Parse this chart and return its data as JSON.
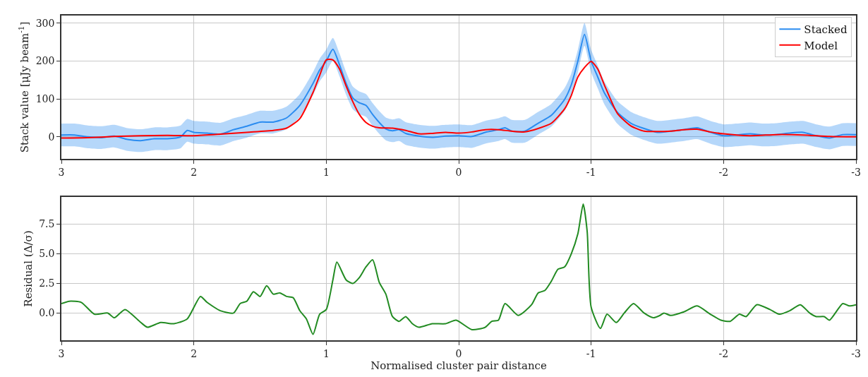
{
  "chart_data": [
    {
      "type": "line",
      "ylabel": "Stack value [μJy beam$^{-1}$]",
      "xlim": [
        3,
        -3
      ],
      "xticks": [
        3,
        2,
        1,
        0,
        -1,
        -2,
        -3
      ],
      "ylim": [
        -58,
        320
      ],
      "yticks": [
        0,
        100,
        200,
        300
      ],
      "grid": true,
      "legend": "top right",
      "series": [
        {
          "name": "Stacked",
          "color": "#2b8cf0",
          "x": [
            3,
            2.9,
            2.8,
            2.7,
            2.6,
            2.5,
            2.4,
            2.3,
            2.2,
            2.1,
            2.05,
            2.0,
            1.9,
            1.8,
            1.7,
            1.6,
            1.5,
            1.4,
            1.3,
            1.2,
            1.1,
            1.05,
            1.0,
            0.95,
            0.9,
            0.85,
            0.8,
            0.75,
            0.7,
            0.65,
            0.6,
            0.55,
            0.5,
            0.45,
            0.4,
            0.3,
            0.2,
            0.1,
            0,
            -0.1,
            -0.2,
            -0.3,
            -0.35,
            -0.4,
            -0.5,
            -0.6,
            -0.7,
            -0.8,
            -0.85,
            -0.9,
            -0.95,
            -1.0,
            -1.05,
            -1.1,
            -1.2,
            -1.3,
            -1.4,
            -1.5,
            -1.6,
            -1.7,
            -1.8,
            -1.9,
            -2.0,
            -2.1,
            -2.2,
            -2.3,
            -2.4,
            -2.5,
            -2.6,
            -2.7,
            -2.8,
            -2.9,
            -3.0
          ],
          "values": [
            5,
            5,
            0,
            -2,
            2,
            -7,
            -10,
            -5,
            -5,
            0,
            17,
            12,
            10,
            7,
            19,
            28,
            39,
            39,
            50,
            83,
            141,
            176,
            200,
            231,
            190,
            141,
            103,
            90,
            83,
            59,
            38,
            21,
            16,
            19,
            9,
            2,
            -1,
            2,
            3,
            1,
            12,
            19,
            24,
            15,
            15,
            36,
            57,
            99,
            137,
            200,
            270,
            200,
            158,
            116,
            64,
            36,
            22,
            12,
            15,
            19,
            24,
            12,
            3,
            5,
            8,
            5,
            6,
            10,
            12,
            3,
            -3,
            6,
            6
          ],
          "lower": [
            -25,
            -25,
            -30,
            -32,
            -28,
            -37,
            -40,
            -35,
            -35,
            -30,
            -13,
            -18,
            -20,
            -23,
            -11,
            -2,
            9,
            9,
            20,
            53,
            111,
            146,
            170,
            201,
            160,
            111,
            73,
            60,
            53,
            29,
            8,
            -9,
            -14,
            -11,
            -21,
            -28,
            -31,
            -28,
            -27,
            -29,
            -18,
            -11,
            -6,
            -15,
            -15,
            6,
            27,
            69,
            107,
            170,
            240,
            170,
            128,
            86,
            34,
            6,
            -8,
            -18,
            -15,
            -11,
            -6,
            -18,
            -27,
            -25,
            -22,
            -25,
            -24,
            -20,
            -18,
            -27,
            -33,
            -24,
            -24
          ],
          "upper": [
            35,
            35,
            30,
            28,
            32,
            23,
            20,
            25,
            25,
            30,
            47,
            42,
            40,
            37,
            49,
            58,
            69,
            69,
            80,
            113,
            171,
            206,
            230,
            261,
            220,
            171,
            133,
            120,
            113,
            89,
            68,
            51,
            46,
            49,
            39,
            32,
            29,
            32,
            33,
            31,
            42,
            49,
            54,
            45,
            45,
            66,
            87,
            129,
            167,
            230,
            300,
            230,
            188,
            146,
            94,
            66,
            52,
            42,
            45,
            49,
            54,
            42,
            33,
            35,
            38,
            35,
            36,
            40,
            42,
            33,
            27,
            36,
            36
          ]
        },
        {
          "name": "Model",
          "color": "#ff0000",
          "x": [
            3,
            2.8,
            2.6,
            2.4,
            2.2,
            2.0,
            1.8,
            1.6,
            1.4,
            1.3,
            1.2,
            1.1,
            1.05,
            1.0,
            0.95,
            0.9,
            0.85,
            0.8,
            0.75,
            0.7,
            0.65,
            0.6,
            0.5,
            0.4,
            0.3,
            0.2,
            0.1,
            0,
            -0.1,
            -0.2,
            -0.3,
            -0.4,
            -0.5,
            -0.6,
            -0.7,
            -0.8,
            -0.85,
            -0.9,
            -0.95,
            -1.0,
            -1.05,
            -1.1,
            -1.2,
            -1.3,
            -1.4,
            -1.5,
            -1.6,
            -1.7,
            -1.8,
            -1.9,
            -2.0,
            -2.2,
            -2.4,
            -2.6,
            -2.8,
            -3.0
          ],
          "values": [
            -3,
            -2,
            1,
            3,
            4,
            3,
            7,
            12,
            17,
            23,
            48,
            117,
            162,
            203,
            203,
            179,
            134,
            93,
            59,
            38,
            28,
            24,
            23,
            17,
            8,
            9,
            12,
            10,
            13,
            19,
            19,
            15,
            13,
            22,
            36,
            74,
            109,
            158,
            183,
            199,
            179,
            137,
            61,
            29,
            15,
            14,
            15,
            19,
            20,
            13,
            8,
            3,
            6,
            5,
            1,
            0
          ]
        }
      ]
    },
    {
      "type": "line",
      "ylabel": "Residual (Δ/σ)",
      "xlabel": "Normalised cluster pair distance",
      "xlim": [
        3,
        -3
      ],
      "xticks": [
        3,
        2,
        1,
        0,
        -1,
        -2,
        -3
      ],
      "ylim": [
        -2.3,
        9.8
      ],
      "yticks": [
        {
          "value": 0,
          "label": "0.0"
        },
        {
          "value": 2.5,
          "label": "2.5"
        },
        {
          "value": 5,
          "label": "5.0"
        },
        {
          "value": 7.5,
          "label": "7.5"
        }
      ],
      "grid": true,
      "series": [
        {
          "color": "#228b22",
          "x": [
            3,
            2.94,
            2.85,
            2.75,
            2.65,
            2.6,
            2.52,
            2.4,
            2.35,
            2.25,
            2.15,
            2.05,
            1.95,
            1.9,
            1.8,
            1.7,
            1.65,
            1.6,
            1.55,
            1.5,
            1.45,
            1.4,
            1.35,
            1.3,
            1.25,
            1.2,
            1.15,
            1.1,
            1.05,
            1.0,
            0.95,
            0.92,
            0.85,
            0.8,
            0.75,
            0.7,
            0.65,
            0.6,
            0.55,
            0.5,
            0.45,
            0.4,
            0.35,
            0.3,
            0.2,
            0.1,
            0.02,
            -0.1,
            -0.2,
            -0.25,
            -0.3,
            -0.35,
            -0.45,
            -0.55,
            -0.6,
            -0.65,
            -0.7,
            -0.75,
            -0.8,
            -0.85,
            -0.9,
            -0.94,
            -0.97,
            -1.0,
            -1.07,
            -1.12,
            -1.19,
            -1.25,
            -1.32,
            -1.4,
            -1.47,
            -1.52,
            -1.55,
            -1.6,
            -1.7,
            -1.8,
            -1.9,
            -1.98,
            -2.05,
            -2.12,
            -2.17,
            -2.25,
            -2.35,
            -2.42,
            -2.5,
            -2.58,
            -2.65,
            -2.7,
            -2.76,
            -2.8,
            -2.9,
            -2.95,
            -3.0
          ],
          "values": [
            0.8,
            1.0,
            0.9,
            -0.1,
            0.0,
            -0.4,
            0.3,
            -0.8,
            -1.2,
            -0.8,
            -0.9,
            -0.5,
            1.4,
            0.9,
            0.2,
            0.0,
            0.8,
            1.0,
            1.8,
            1.4,
            2.3,
            1.6,
            1.7,
            1.4,
            1.3,
            0.2,
            -0.5,
            -1.8,
            -0.1,
            0.3,
            2.8,
            4.3,
            2.8,
            2.5,
            3.0,
            3.9,
            4.5,
            2.6,
            1.6,
            -0.3,
            -0.7,
            -0.3,
            -0.9,
            -1.2,
            -0.9,
            -0.9,
            -0.6,
            -1.4,
            -1.2,
            -0.7,
            -0.6,
            0.8,
            -0.2,
            0.7,
            1.7,
            1.9,
            2.7,
            3.7,
            3.9,
            5.0,
            6.7,
            9.2,
            6.9,
            0.5,
            -1.3,
            -0.1,
            -0.8,
            0.0,
            0.8,
            0.0,
            -0.4,
            -0.2,
            0.0,
            -0.2,
            0.1,
            0.6,
            -0.1,
            -0.6,
            -0.7,
            -0.1,
            -0.3,
            0.7,
            0.3,
            -0.1,
            0.2,
            0.7,
            0.0,
            -0.3,
            -0.3,
            -0.6,
            0.8,
            0.6,
            0.7
          ]
        }
      ]
    }
  ]
}
